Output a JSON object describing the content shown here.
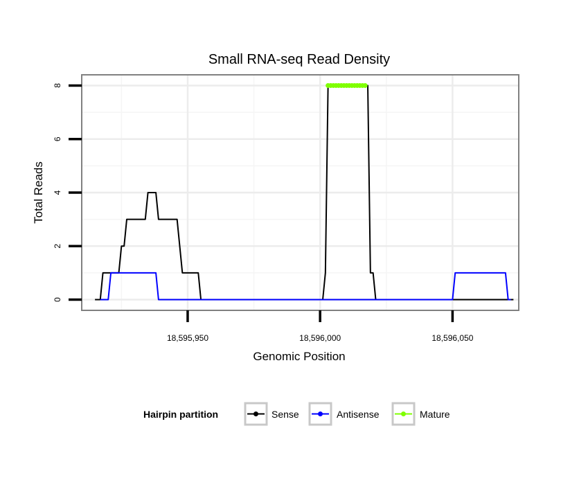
{
  "chart_data": {
    "type": "line",
    "title": "Small RNA-seq Read Density",
    "xlabel": "Genomic Position",
    "ylabel": "Total Reads",
    "xlim": [
      18595910,
      18596075
    ],
    "ylim": [
      -0.4,
      8.4
    ],
    "x_ticks": [
      {
        "value": 18595950,
        "label": "18,595,950"
      },
      {
        "value": 18596000,
        "label": "18,596,000"
      },
      {
        "value": 18596050,
        "label": "18,596,050"
      }
    ],
    "y_ticks": [
      {
        "value": 0,
        "label": "0"
      },
      {
        "value": 2,
        "label": "2"
      },
      {
        "value": 4,
        "label": "4"
      },
      {
        "value": 6,
        "label": "6"
      },
      {
        "value": 8,
        "label": "8"
      }
    ],
    "grid": true,
    "legend": {
      "title": "Hairpin partition",
      "position": "bottom",
      "entries": [
        "Sense",
        "Antisense",
        "Mature"
      ]
    },
    "series": [
      {
        "name": "Sense",
        "color": "#000000",
        "x": [
          18595915,
          18595916,
          18595917,
          18595918,
          18595924,
          18595925,
          18595926,
          18595927,
          18595934,
          18595935,
          18595936,
          18595937,
          18595938,
          18595939,
          18595945,
          18595946,
          18595947,
          18595948,
          18595953,
          18595954,
          18595955,
          18596000,
          18596001,
          18596002,
          18596003,
          18596004,
          18596016,
          18596017,
          18596018,
          18596019,
          18596020,
          18596021,
          18596073
        ],
        "values": [
          0,
          0,
          0,
          1,
          1,
          2,
          2,
          3,
          3,
          4,
          4,
          4,
          4,
          3,
          3,
          3,
          2,
          1,
          1,
          1,
          0,
          0,
          0,
          1,
          8,
          8,
          8,
          8,
          8,
          1,
          1,
          0,
          0
        ]
      },
      {
        "name": "Antisense",
        "color": "#0000ff",
        "x": [
          18595917,
          18595918,
          18595919,
          18595920,
          18595921,
          18595922,
          18595937,
          18595938,
          18595939,
          18595955,
          18596050,
          18596051,
          18596052,
          18596070,
          18596071,
          18596072
        ],
        "values": [
          0,
          0,
          0,
          0,
          1,
          1,
          1,
          1,
          0,
          0,
          0,
          1,
          1,
          1,
          0,
          0
        ]
      },
      {
        "name": "Mature",
        "color": "#7fff00",
        "x": [
          18596003,
          18596004,
          18596005,
          18596006,
          18596007,
          18596008,
          18596009,
          18596010,
          18596011,
          18596012,
          18596013,
          18596014,
          18596015,
          18596016,
          18596017
        ],
        "values": [
          8,
          8,
          8,
          8,
          8,
          8,
          8,
          8,
          8,
          8,
          8,
          8,
          8,
          8,
          8
        ]
      }
    ]
  }
}
